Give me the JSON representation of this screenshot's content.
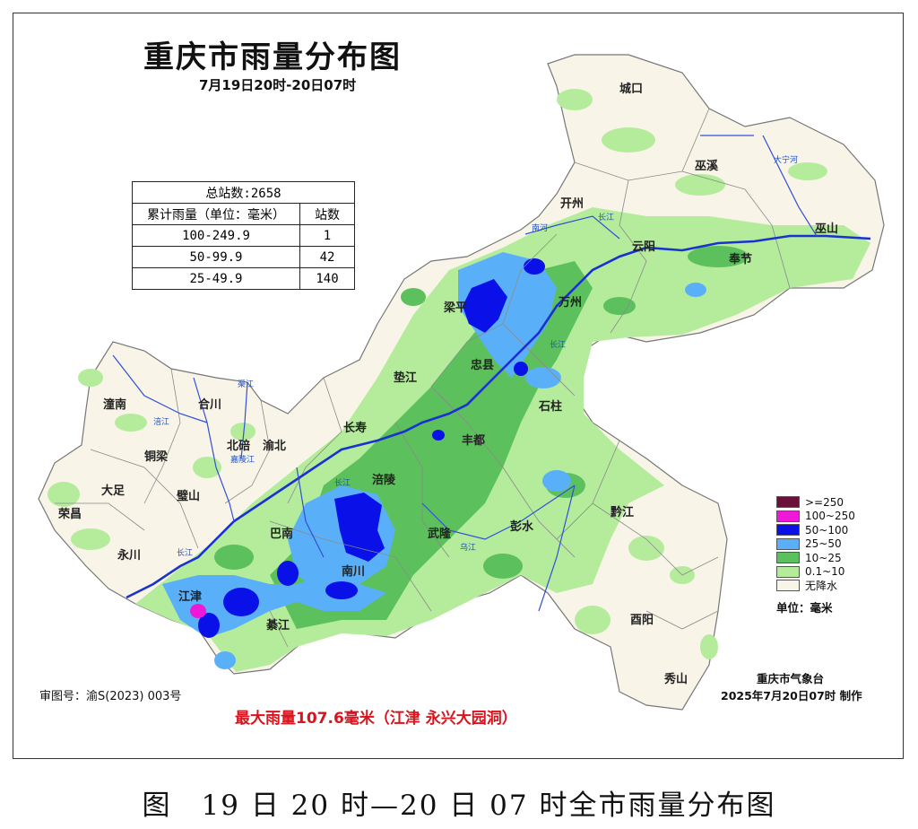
{
  "map": {
    "title": "重庆市雨量分布图",
    "subtitle": "7月19日20时-20日07时",
    "stats_table": {
      "total": "总站数:2658",
      "header": [
        "累计雨量（单位：毫米）",
        "站数"
      ],
      "rows": [
        {
          "range": "100-249.9",
          "count": "1"
        },
        {
          "range": "50-99.9",
          "count": "42"
        },
        {
          "range": "25-49.9",
          "count": "140"
        }
      ]
    },
    "legend": {
      "items": [
        {
          "label": ">=250",
          "color": "#6b1038"
        },
        {
          "label": "100~250",
          "color": "#f018d8"
        },
        {
          "label": "50~100",
          "color": "#0a10e8"
        },
        {
          "label": "25~50",
          "color": "#5ab0f8"
        },
        {
          "label": "10~25",
          "color": "#5cc05c"
        },
        {
          "label": "0.1~10",
          "color": "#b4ec9c"
        },
        {
          "label": "无降水",
          "color": "#f8f4e8"
        }
      ],
      "unit": "单位：毫米"
    },
    "places": {
      "chengkou": "城口",
      "wuxi": "巫溪",
      "wushan": "巫山",
      "kaizhou": "开州",
      "yunyang": "云阳",
      "fengjie": "奉节",
      "wanzhou": "万州",
      "liangping": "梁平",
      "zhongxian": "忠县",
      "shizhu": "石柱",
      "dianjiang": "垫江",
      "fengdu": "丰都",
      "changshou": "长寿",
      "fuling": "涪陵",
      "wulong": "武隆",
      "pengshui": "彭水",
      "qianjiang": "黔江",
      "youyang": "酉阳",
      "xiushan": "秀山",
      "nanchuan": "南川",
      "banan": "巴南",
      "qijiang": "綦江",
      "jiangjin": "江津",
      "yongchuan": "永川",
      "rongchang": "荣昌",
      "dazu": "大足",
      "bishan": "璧山",
      "tongliang": "铜梁",
      "tongnan": "潼南",
      "hechuan": "合川",
      "beibei": "北碚",
      "yubei": "渝北"
    },
    "rivers": {
      "yangtze_1": "长江",
      "yangtze_2": "长江",
      "yangtze_3": "长江",
      "yangtze_4": "长江",
      "daning": "大宁河",
      "nanhe": "南河",
      "jialing": "嘉陵江",
      "fujiang": "涪江",
      "qujiang": "渠江",
      "wujiang": "乌江"
    },
    "approval_no": "审图号：渝S(2023) 003号",
    "max_rain": "最大雨量107.6毫米（江津 永兴大园洞）",
    "agency": "重庆市气象台",
    "issued": "2025年7月20日07时 制作"
  },
  "caption": "图　19 日 20 时—20 日 07 时全市雨量分布图"
}
